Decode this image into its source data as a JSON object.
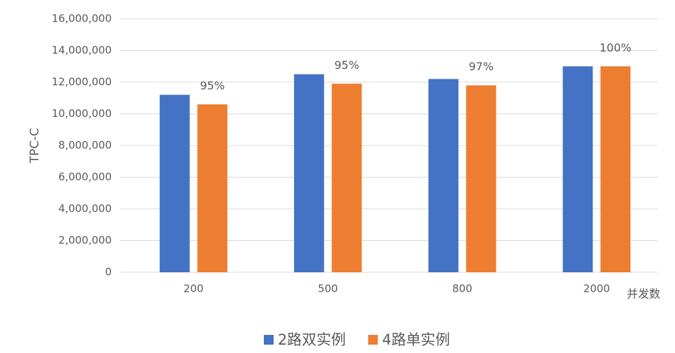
{
  "chart_data": {
    "type": "bar",
    "categories": [
      "200",
      "500",
      "800",
      "2000"
    ],
    "series": [
      {
        "name": "2路双实例",
        "color": "#4472c4",
        "values": [
          11200000,
          12500000,
          12200000,
          13000000
        ]
      },
      {
        "name": "4路单实例",
        "color": "#ed7d31",
        "values": [
          10600000,
          11900000,
          11800000,
          13000000
        ]
      }
    ],
    "annotations": [
      "95%",
      "95%",
      "97%",
      "100%"
    ],
    "ylabel": "TPC-C",
    "xlabel": "并发数",
    "ylim": [
      0,
      16000000
    ],
    "yticks": [
      0,
      {
        "value": 2000000,
        "label": "2,000,000"
      },
      {
        "value": 4000000,
        "label": "4,000,000"
      },
      {
        "value": 6000000,
        "label": "6,000,000"
      },
      {
        "value": 8000000,
        "label": "8,000,000"
      },
      {
        "value": 10000000,
        "label": "10,000,000"
      },
      {
        "value": 12000000,
        "label": "12,000,000"
      },
      {
        "value": 14000000,
        "label": "14,000,000"
      },
      {
        "value": 16000000,
        "label": "16,000,000"
      }
    ],
    "grid": true,
    "legend": "bottom"
  }
}
